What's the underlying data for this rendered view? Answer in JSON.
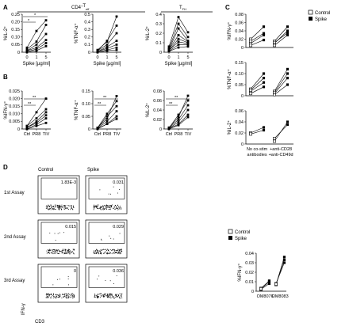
{
  "panel_letters": {
    "A": "A",
    "B": "B",
    "C": "C",
    "D": "D"
  },
  "headers": {
    "teff_base": "CD4",
    "teff_sup": "+",
    "teff_sub": "eff",
    "tfh_base": "T",
    "tfh_sub": "FH"
  },
  "symbols": {
    "sig_one": "*",
    "sig_two": "**"
  },
  "legend": {
    "control": "Control",
    "spike": "Spike"
  },
  "assays": {
    "first": "1st Assay",
    "second": "2nd Assay",
    "third": "3rd Assay"
  },
  "flow_columns": {
    "control": "Control",
    "spike": "Spike"
  },
  "flow_values": [
    [
      "1.83E-3",
      "0.031"
    ],
    [
      "0.015",
      "0.029"
    ],
    [
      "0",
      "0.036"
    ]
  ],
  "flow_axes": {
    "y": "IFN-γ",
    "x": "CD3"
  },
  "chart_data": [
    {
      "id": "A1",
      "type": "line",
      "ylabel": "%IL-2⁺",
      "categories": [
        "0",
        "1",
        "5"
      ],
      "xlabel": "Spike [µg/ml]",
      "ylim": [
        0,
        0.25
      ],
      "ticks": [
        "0",
        "0.05",
        "0.10",
        "0.15",
        "0.20",
        "0.25"
      ],
      "series": [
        {
          "values": [
            0.03,
            0.14,
            0.21
          ]
        },
        {
          "values": [
            0.02,
            0.07,
            0.18
          ]
        },
        {
          "values": [
            0.01,
            0.05,
            0.12
          ]
        },
        {
          "values": [
            0.01,
            0.03,
            0.08
          ]
        },
        {
          "values": [
            0.005,
            0.02,
            0.06
          ]
        },
        {
          "values": [
            0.0,
            0.01,
            0.04
          ]
        }
      ]
    },
    {
      "id": "A2",
      "type": "line",
      "ylabel": "%TNF-α⁺",
      "categories": [
        "0",
        "1",
        "5"
      ],
      "xlabel": "Spike [µg/ml]",
      "ylim": [
        0,
        0.5
      ],
      "ticks": [
        "0",
        "0.1",
        "0.2",
        "0.3",
        "0.4",
        "0.5"
      ],
      "series": [
        {
          "values": [
            0.03,
            0.14,
            0.47
          ]
        },
        {
          "values": [
            0.02,
            0.15,
            0.35
          ]
        },
        {
          "values": [
            0.02,
            0.1,
            0.25
          ]
        },
        {
          "values": [
            0.01,
            0.07,
            0.15
          ]
        },
        {
          "values": [
            0.01,
            0.05,
            0.1
          ]
        },
        {
          "values": [
            0.0,
            0.03,
            0.06
          ]
        },
        {
          "values": [
            0.0,
            0.02,
            0.03
          ]
        }
      ]
    },
    {
      "id": "A3",
      "type": "line",
      "ylabel": "%IL-2⁺",
      "categories": [
        "0",
        "1",
        "5"
      ],
      "xlabel": "Spike [µg/ml]",
      "ylim": [
        0,
        0.4
      ],
      "ticks": [
        "0",
        "0.1",
        "0.2",
        "0.3",
        "0.4"
      ],
      "series": [
        {
          "values": [
            0.06,
            0.37,
            0.21
          ]
        },
        {
          "values": [
            0.04,
            0.3,
            0.16
          ]
        },
        {
          "values": [
            0.03,
            0.25,
            0.12
          ]
        },
        {
          "values": [
            0.03,
            0.18,
            0.11
          ]
        },
        {
          "values": [
            0.02,
            0.14,
            0.1
          ]
        },
        {
          "values": [
            0.02,
            0.11,
            0.09
          ]
        },
        {
          "values": [
            0.01,
            0.08,
            0.08
          ]
        },
        {
          "values": [
            0.01,
            0.05,
            0.06
          ]
        }
      ]
    },
    {
      "id": "B1",
      "type": "line",
      "ylabel": "%IFN-γ⁺",
      "categories": [
        "Ctrl",
        "PR8",
        "TIV"
      ],
      "xlabel": "",
      "ylim": [
        0,
        0.025
      ],
      "ticks": [
        "0",
        "0.005",
        "0.010",
        "0.015",
        "0.020",
        "0.025"
      ],
      "series": [
        {
          "values": [
            0.002,
            0.011,
            0.02
          ]
        },
        {
          "values": [
            0.002,
            0.007,
            0.013
          ]
        },
        {
          "values": [
            0.001,
            0.005,
            0.011
          ]
        },
        {
          "values": [
            0.001,
            0.004,
            0.009
          ]
        },
        {
          "values": [
            0.0,
            0.003,
            0.007
          ]
        },
        {
          "values": [
            0.0,
            0.002,
            0.004
          ]
        }
      ]
    },
    {
      "id": "B2",
      "type": "line",
      "ylabel": "%TNF-α⁺",
      "categories": [
        "Ctrl",
        "PR8",
        "TIV"
      ],
      "xlabel": "",
      "ylim": [
        0,
        0.15
      ],
      "ticks": [
        "0",
        "0.05",
        "0.10",
        "0.15"
      ],
      "series": [
        {
          "values": [
            0.005,
            0.04,
            0.13
          ]
        },
        {
          "values": [
            0.005,
            0.06,
            0.11
          ]
        },
        {
          "values": [
            0.003,
            0.05,
            0.09
          ]
        },
        {
          "values": [
            0.002,
            0.03,
            0.07
          ]
        },
        {
          "values": [
            0.001,
            0.02,
            0.05
          ]
        },
        {
          "values": [
            0.0,
            0.02,
            0.04
          ]
        }
      ]
    },
    {
      "id": "B3",
      "type": "line",
      "ylabel": "%IL-2⁺",
      "categories": [
        "Ctrl",
        "PR8",
        "TIV"
      ],
      "xlabel": "",
      "ylim": [
        0,
        0.08
      ],
      "ticks": [
        "0",
        "0.02",
        "0.04",
        "0.06",
        "0.08"
      ],
      "series": [
        {
          "values": [
            0.003,
            0.025,
            0.07
          ]
        },
        {
          "values": [
            0.002,
            0.03,
            0.06
          ]
        },
        {
          "values": [
            0.002,
            0.02,
            0.05
          ]
        },
        {
          "values": [
            0.001,
            0.015,
            0.04
          ]
        },
        {
          "values": [
            0.001,
            0.01,
            0.03
          ]
        },
        {
          "values": [
            0.0,
            0.008,
            0.025
          ]
        }
      ]
    },
    {
      "id": "C1",
      "type": "line",
      "ylabel": "%IFN-γ⁺",
      "ylim": [
        0,
        0.08
      ],
      "ticks": [
        "0",
        "0.02",
        "0.04",
        "0.06",
        "0.08"
      ],
      "groups": [
        {
          "control": [
            0.01,
            0.02,
            0.005,
            0.015
          ],
          "spike": [
            0.03,
            0.05,
            0.018,
            0.034
          ]
        },
        {
          "control": [
            0.01,
            0.015,
            0.005,
            0.012
          ],
          "spike": [
            0.04,
            0.05,
            0.03,
            0.035
          ]
        }
      ]
    },
    {
      "id": "C2",
      "type": "line",
      "ylabel": "%TNF-α⁺",
      "ylim": [
        0,
        0.15
      ],
      "ticks": [
        "0",
        "0.05",
        "0.10",
        "0.15"
      ],
      "groups": [
        {
          "control": [
            0.02,
            0.03,
            0.01,
            0.025
          ],
          "spike": [
            0.06,
            0.1,
            0.04,
            0.08
          ]
        },
        {
          "control": [
            0.01,
            0.02,
            0.005,
            0.015
          ],
          "spike": [
            0.08,
            0.12,
            0.05,
            0.1
          ]
        }
      ]
    },
    {
      "id": "C3",
      "type": "line",
      "ylabel": "%IL-2⁺",
      "ylim": [
        0,
        0.06
      ],
      "ticks": [
        "0",
        "0.02",
        "0.04",
        "0.06"
      ],
      "categories": [
        "No co-stim\nantibodies",
        "+anti-CD28\n+anti-CD49d"
      ],
      "groups": [
        {
          "control": [
            0.02,
            0.018
          ],
          "spike": [
            0.03,
            0.025
          ]
        },
        {
          "control": [
            0.005,
            0.01
          ],
          "spike": [
            0.04,
            0.035
          ]
        }
      ]
    },
    {
      "id": "D2",
      "type": "line",
      "ylabel": "%IFN-γ⁺",
      "ylim": [
        0,
        0.04
      ],
      "ticks": [
        "0",
        "0.01",
        "0.02",
        "0.03",
        "0.04"
      ],
      "categories": [
        "OM8076",
        "OM8083"
      ],
      "groups": [
        {
          "control": [
            0.002,
            0.003,
            0.0025
          ],
          "spike": [
            0.008,
            0.011,
            0.01
          ]
        },
        {
          "control": [
            0.007,
            0.008,
            0.0075
          ],
          "spike": [
            0.036,
            0.03,
            0.033
          ]
        }
      ]
    }
  ]
}
